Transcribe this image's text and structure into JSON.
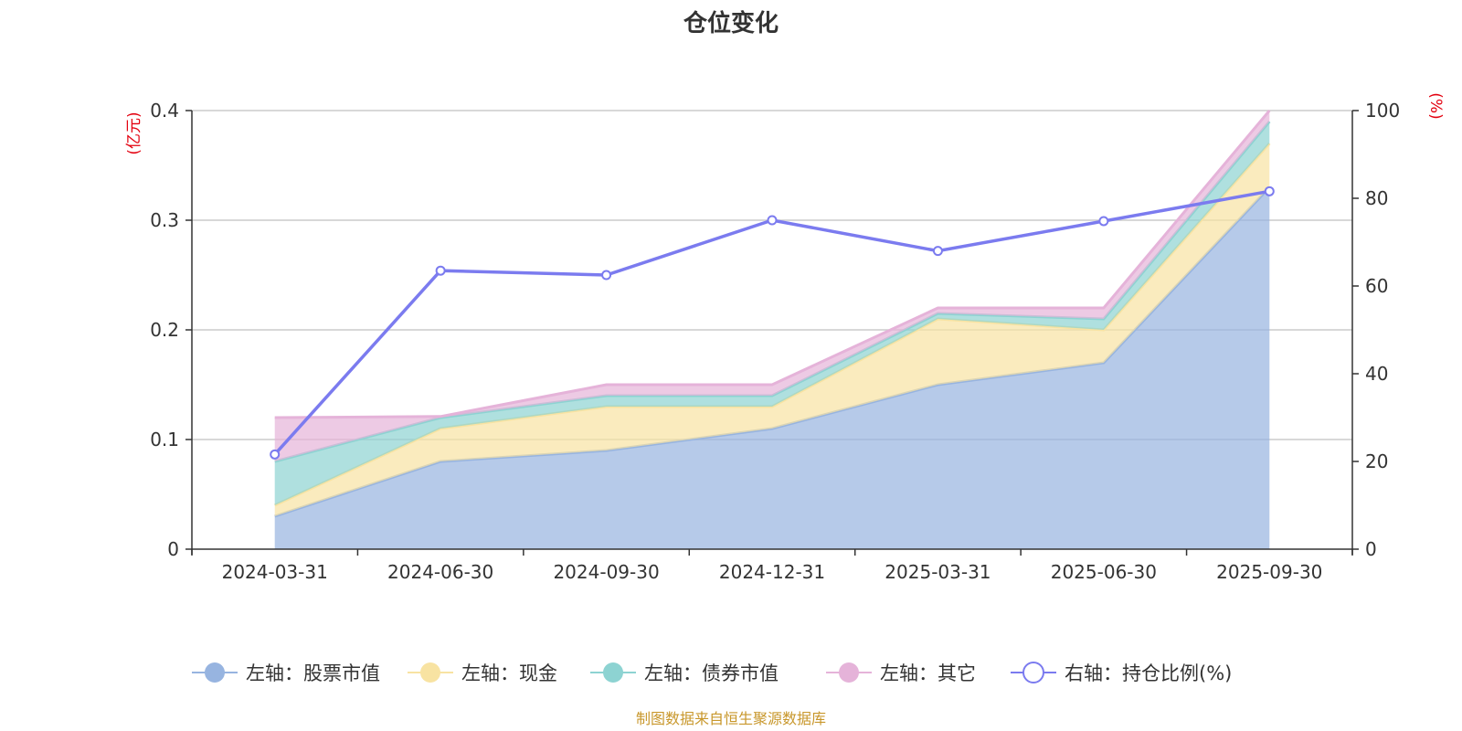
{
  "chart_data": {
    "type": "area",
    "title": "仓位变化",
    "categories": [
      "2024-03-31",
      "2024-06-30",
      "2024-09-30",
      "2024-12-31",
      "2025-03-31",
      "2025-06-30",
      "2025-09-30"
    ],
    "left_axis": {
      "unit": "(亿元)",
      "ylim": [
        0,
        0.4
      ],
      "ticks": [
        "0",
        "0.1",
        "0.2",
        "0.3",
        "0.4"
      ],
      "tick_values": [
        0,
        0.1,
        0.2,
        0.3,
        0.4
      ]
    },
    "right_axis": {
      "unit": "(%)",
      "ylim": [
        0,
        100
      ],
      "ticks": [
        "0",
        "20",
        "40",
        "60",
        "80",
        "100"
      ],
      "tick_values": [
        0,
        20,
        40,
        60,
        80,
        100
      ]
    },
    "stacked_series": [
      {
        "name": "左轴：股票市值",
        "color": "#97b4e0",
        "values": [
          0.03,
          0.08,
          0.09,
          0.11,
          0.15,
          0.17,
          0.33
        ]
      },
      {
        "name": "左轴：现金",
        "color": "#f8e3a2",
        "values": [
          0.01,
          0.03,
          0.04,
          0.02,
          0.06,
          0.03,
          0.04
        ]
      },
      {
        "name": "左轴：债券市值",
        "color": "#8dd3d2",
        "values": [
          0.04,
          0.01,
          0.01,
          0.01,
          0.005,
          0.01,
          0.02
        ]
      },
      {
        "name": "左轴：其它",
        "color": "#e5b3d9",
        "values": [
          0.04,
          0.001,
          0.01,
          0.01,
          0.005,
          0.01,
          0.01
        ]
      }
    ],
    "line_series": {
      "name": "右轴：持仓比例(%)",
      "color": "#7b7bef",
      "values": [
        21.6,
        63.5,
        62.5,
        75.0,
        68.0,
        74.8,
        81.6
      ]
    },
    "grid": true,
    "legend_position": "bottom"
  },
  "source": "制图数据来自恒生聚源数据库"
}
